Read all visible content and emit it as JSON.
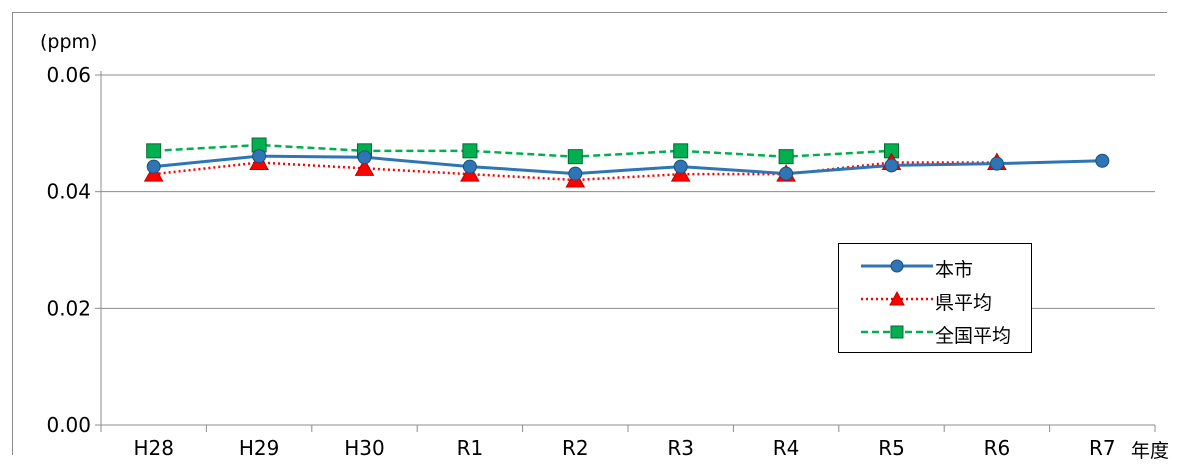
{
  "chart_data": {
    "type": "line",
    "unit_label": "(ppm)",
    "xlabel": "年度",
    "categories": [
      "H28",
      "H29",
      "H30",
      "R1",
      "R2",
      "R3",
      "R4",
      "R5",
      "R6",
      "R7"
    ],
    "ylim": [
      0,
      0.06
    ],
    "yticks": [
      "0.00",
      "0.02",
      "0.04",
      "0.06"
    ],
    "grid": true,
    "legend_position": "right",
    "series": [
      {
        "name": "本市",
        "color": "#2E75B6",
        "marker": "circle",
        "line_style": "solid",
        "values": [
          0.0443,
          0.0461,
          0.0459,
          0.0443,
          0.0431,
          0.0443,
          0.0431,
          0.0445,
          0.0448,
          0.0453
        ]
      },
      {
        "name": "県平均",
        "color": "#FF0000",
        "marker": "triangle",
        "line_style": "dotted",
        "values": [
          0.043,
          0.045,
          0.044,
          0.043,
          0.042,
          0.043,
          0.043,
          0.045,
          0.045,
          null
        ]
      },
      {
        "name": "全国平均",
        "color": "#00B050",
        "marker": "square",
        "line_style": "dashed",
        "values": [
          0.047,
          0.048,
          0.047,
          0.047,
          0.046,
          0.047,
          0.046,
          0.047,
          null,
          null
        ]
      }
    ]
  }
}
